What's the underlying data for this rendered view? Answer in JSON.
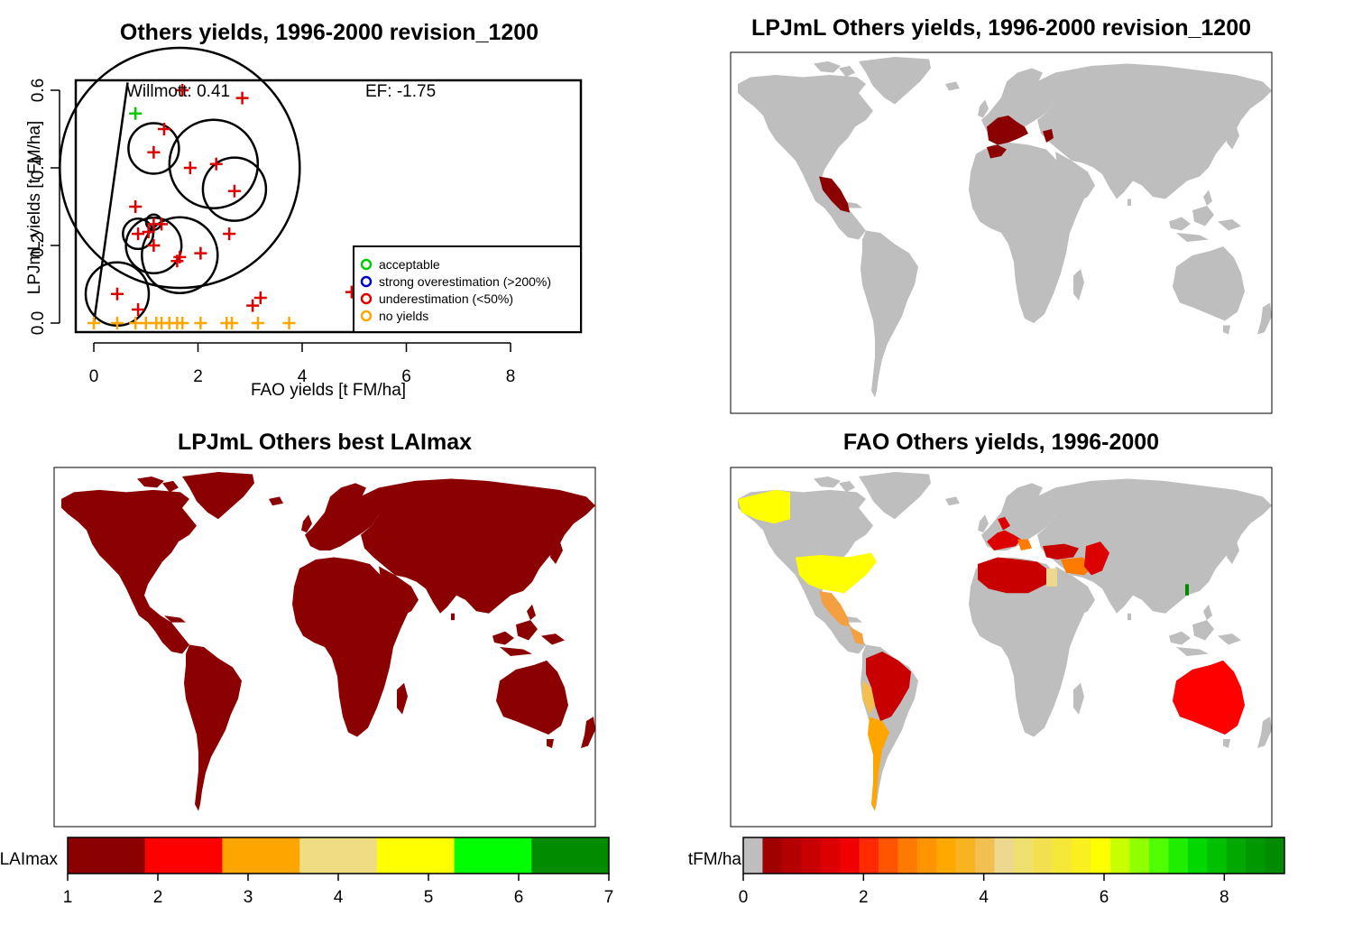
{
  "scatter": {
    "title": "Others yields, 1996-2000 revision_1200",
    "xlabel": "FAO yields [t FM/ha]",
    "ylabel": "LPJmL yields [t FM/ha]",
    "willmott": "Willmott: 0.41",
    "ef": "EF: -1.75",
    "x_ticks": [
      "0",
      "2",
      "4",
      "6",
      "8"
    ],
    "y_ticks": [
      "0.0",
      "0.2",
      "0.4",
      "0.6"
    ],
    "legend": [
      {
        "label": "acceptable",
        "color": "#00cc00"
      },
      {
        "label": "strong overestimation (>200%)",
        "color": "#0000cc"
      },
      {
        "label": "underestimation (<50%)",
        "color": "#dd0000"
      },
      {
        "label": "no yields",
        "color": "#ffa500"
      }
    ]
  },
  "map_lpjml_yields": {
    "title": "LPJmL Others yields, 1996-2000 revision_1200"
  },
  "map_laimax": {
    "title": "LPJmL Others best LAImax",
    "colorbar_label": "LAImax"
  },
  "map_fao": {
    "title": "FAO Others yields, 1996-2000",
    "colorbar_label": "tFM/ha"
  },
  "colorbar_lai": {
    "ticks": [
      "1",
      "2",
      "3",
      "4",
      "5",
      "6",
      "7"
    ],
    "colors": [
      "#8b0000",
      "#ff0000",
      "#ffa500",
      "#f0dc82",
      "#ffff00",
      "#00ff00",
      "#008b00"
    ]
  },
  "colorbar_fao": {
    "ticks": [
      "0",
      "2",
      "4",
      "6",
      "8"
    ],
    "colors": [
      "#bebebe",
      "#a00000",
      "#b40000",
      "#c80000",
      "#dc0000",
      "#f00000",
      "#ff2a00",
      "#ff5500",
      "#ff7a00",
      "#ff9400",
      "#ffa800",
      "#f8b420",
      "#f2c050",
      "#eed890",
      "#f0e070",
      "#f3e050",
      "#f6e838",
      "#faf020",
      "#ffff00",
      "#c8ff00",
      "#90ff00",
      "#50ff00",
      "#20ee00",
      "#00d800",
      "#00c000",
      "#00a800",
      "#009800",
      "#008b00"
    ]
  },
  "chart_data": [
    {
      "type": "scatter",
      "title": "Others yields, 1996-2000 revision_1200",
      "xlabel": "FAO yields [t FM/ha]",
      "ylabel": "LPJmL yields [t FM/ha]",
      "xlim": [
        0,
        9.6
      ],
      "ylim": [
        0,
        0.62
      ],
      "series": [
        {
          "name": "acceptable",
          "points": [
            [
              0.8,
              0.54
            ]
          ]
        },
        {
          "name": "underestimation (<50%)",
          "points": [
            [
              1.7,
              0.6
            ],
            [
              2.85,
              0.58
            ],
            [
              1.35,
              0.5
            ],
            [
              1.15,
              0.44
            ],
            [
              1.85,
              0.4
            ],
            [
              2.35,
              0.41
            ],
            [
              2.7,
              0.34
            ],
            [
              0.8,
              0.3
            ],
            [
              0.85,
              0.23
            ],
            [
              1.05,
              0.235
            ],
            [
              1.15,
              0.255
            ],
            [
              1.3,
              0.255
            ],
            [
              1.15,
              0.2
            ],
            [
              1.65,
              0.17
            ],
            [
              1.6,
              0.16
            ],
            [
              2.05,
              0.18
            ],
            [
              2.6,
              0.23
            ],
            [
              0.45,
              0.075
            ],
            [
              0.85,
              0.035
            ],
            [
              3.2,
              0.065
            ],
            [
              3.05,
              0.045
            ],
            [
              4.95,
              0.08
            ]
          ]
        },
        {
          "name": "no yields",
          "points": [
            [
              0,
              0
            ],
            [
              0.45,
              0
            ],
            [
              0.8,
              0
            ],
            [
              1.0,
              0
            ],
            [
              1.2,
              0
            ],
            [
              1.3,
              0
            ],
            [
              1.45,
              0
            ],
            [
              1.6,
              0
            ],
            [
              1.7,
              0
            ],
            [
              2.05,
              0
            ],
            [
              2.55,
              0
            ],
            [
              2.65,
              0
            ],
            [
              3.15,
              0
            ],
            [
              3.75,
              0
            ]
          ]
        }
      ],
      "bubbles": [
        {
          "x": 1.65,
          "y": 0.4,
          "r": 0.095
        },
        {
          "x": 1.15,
          "y": 0.45,
          "r": 0.02
        },
        {
          "x": 2.3,
          "y": 0.41,
          "r": 0.035
        },
        {
          "x": 2.7,
          "y": 0.345,
          "r": 0.025
        },
        {
          "x": 1.15,
          "y": 0.26,
          "r": 0.006
        },
        {
          "x": 0.85,
          "y": 0.23,
          "r": 0.012
        },
        {
          "x": 1.15,
          "y": 0.2,
          "r": 0.022
        },
        {
          "x": 1.65,
          "y": 0.175,
          "r": 0.03
        },
        {
          "x": 0.45,
          "y": 0.075,
          "r": 0.025
        }
      ],
      "fit_line": [
        [
          0,
          0
        ],
        [
          0.65,
          0.62
        ]
      ],
      "willmott": 0.41,
      "ef": -1.75,
      "legend_position": "bottom-right"
    },
    {
      "type": "heatmap",
      "title": "LPJmL Others yields, 1996-2000 revision_1200",
      "regions": [
        "Mexico",
        "Southern Europe",
        "North Africa coast"
      ]
    },
    {
      "type": "heatmap",
      "title": "LPJmL Others best LAImax",
      "colorbar": {
        "label": "LAImax",
        "range": [
          1,
          7
        ],
        "bins": 7
      },
      "note_value": 1
    },
    {
      "type": "heatmap",
      "title": "FAO Others yields, 1996-2000",
      "colorbar": {
        "label": "tFM/ha",
        "range": [
          0,
          9
        ],
        "bins": 27
      }
    }
  ]
}
